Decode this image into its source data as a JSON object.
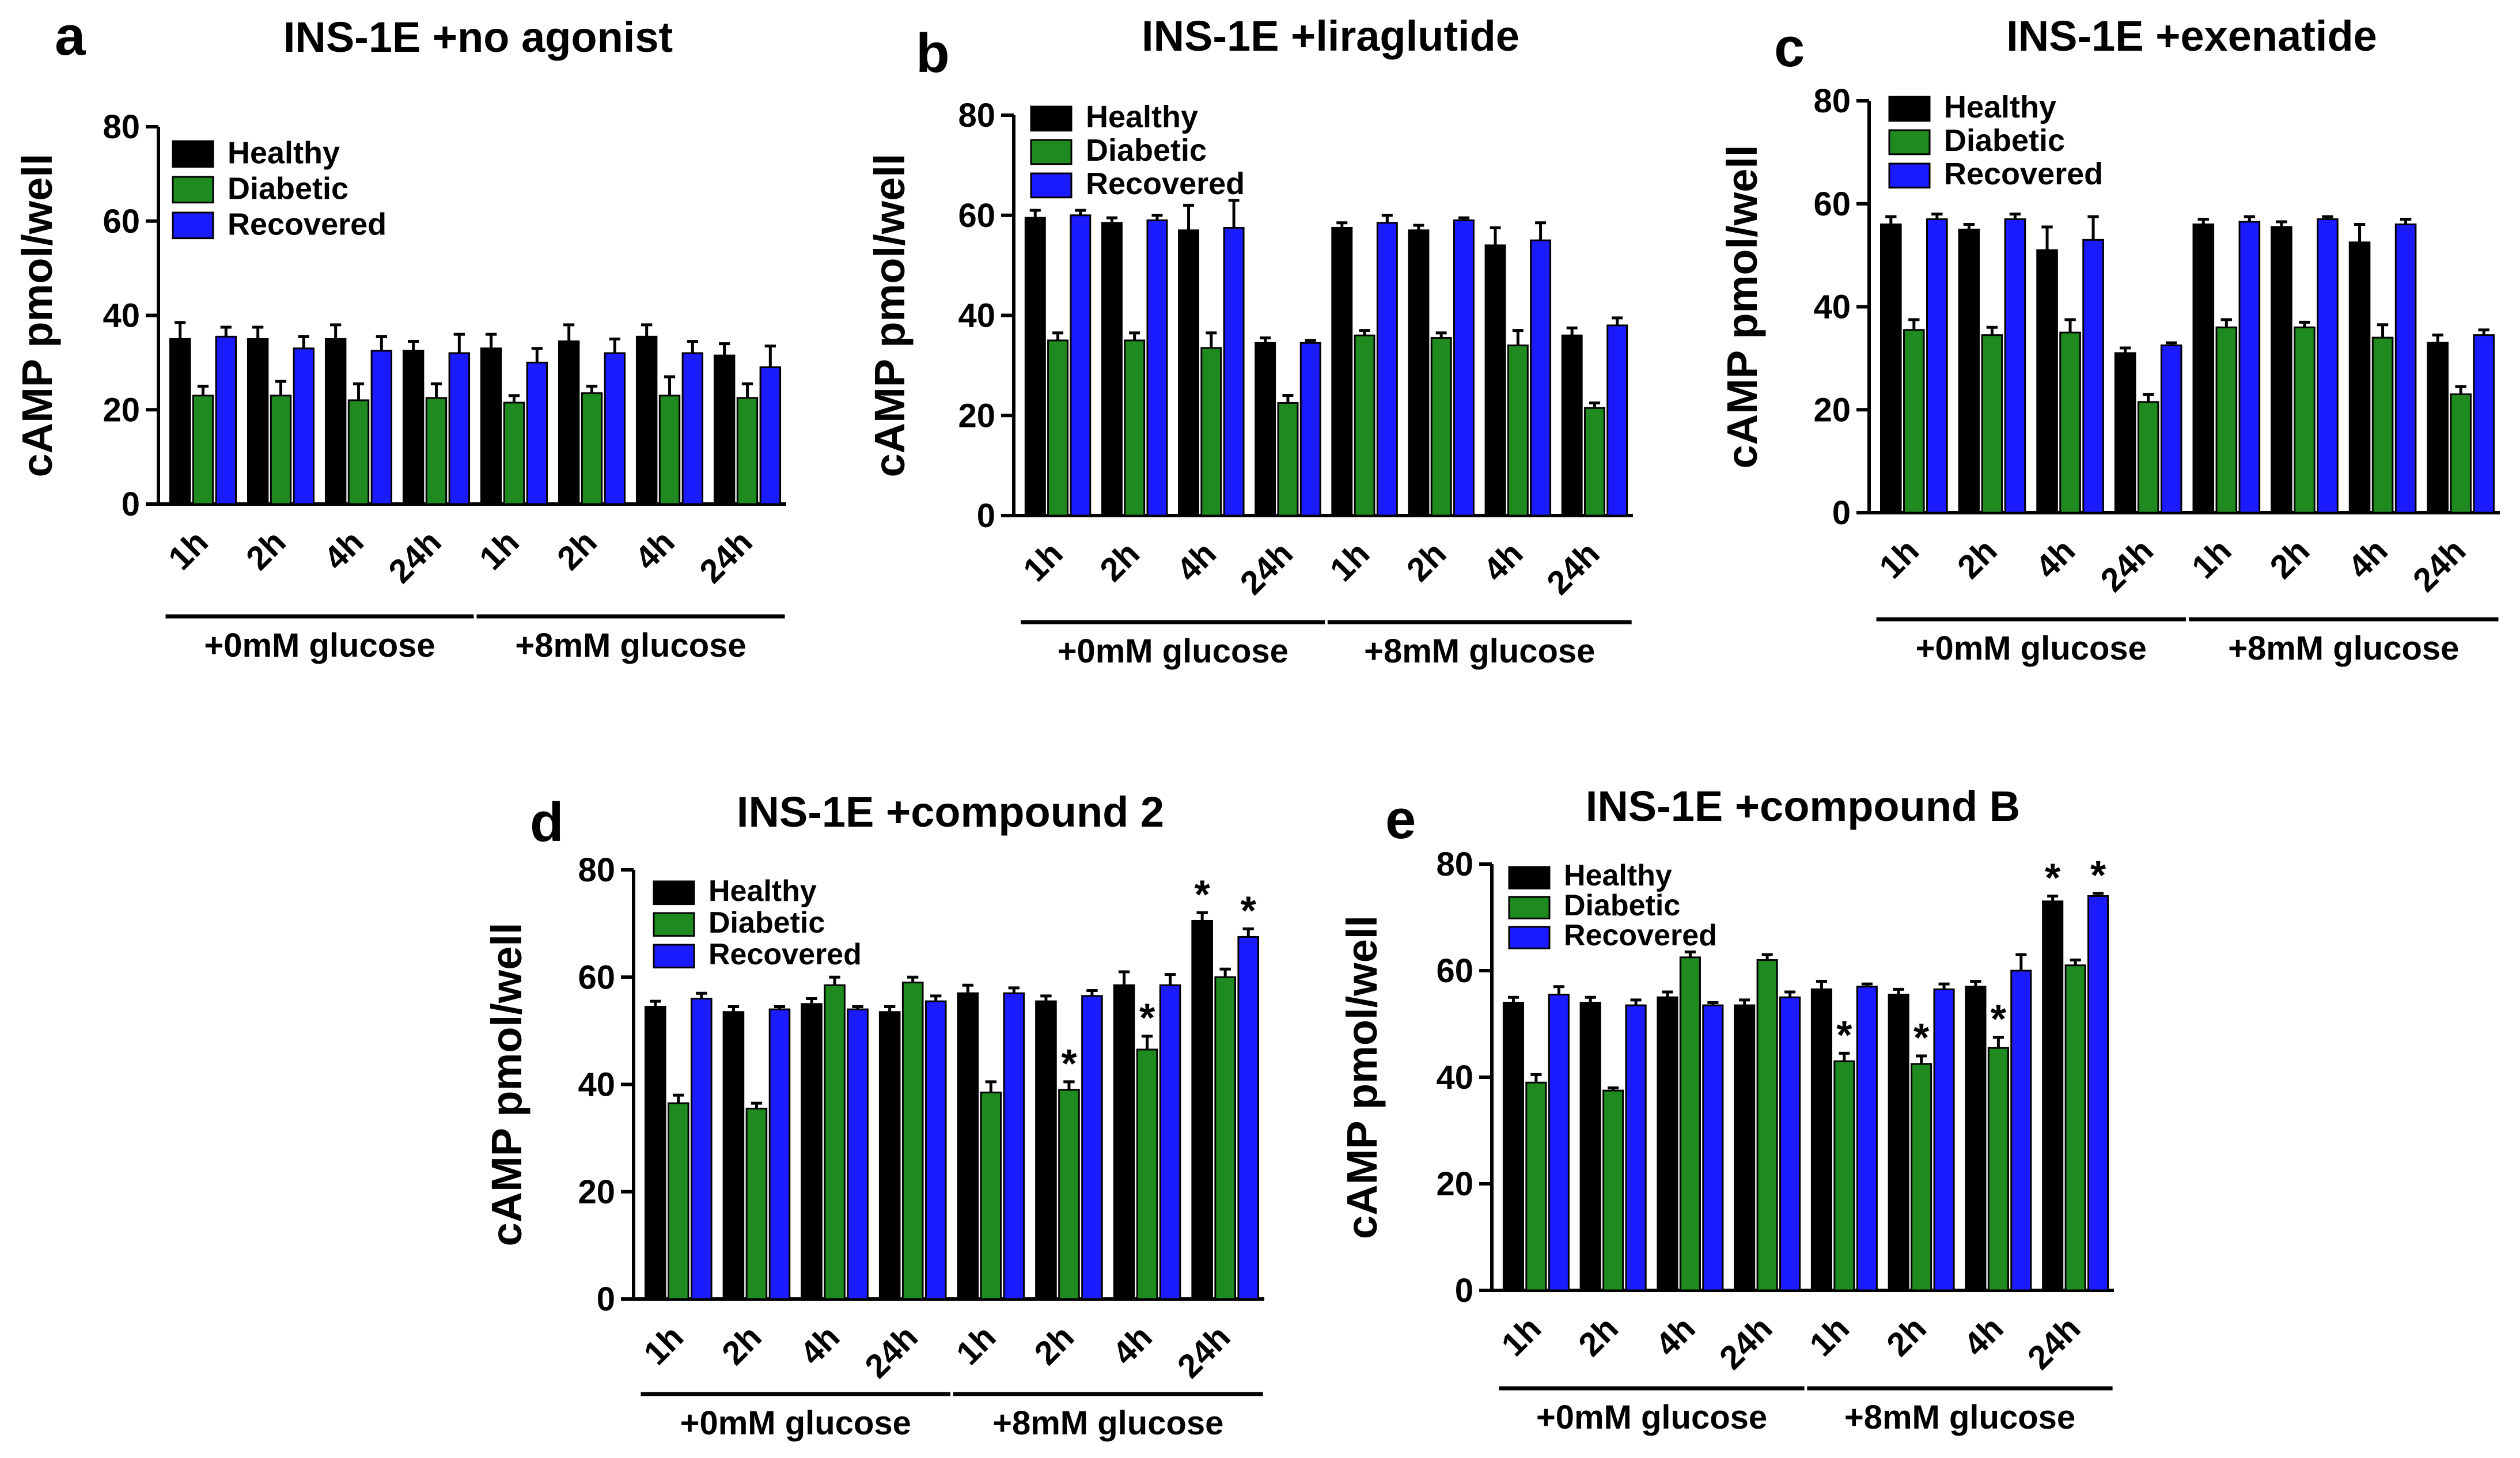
{
  "colors": {
    "healthy": "#000000",
    "diabetic": "#1f8a1f",
    "recovered": "#1b1bff",
    "axis": "#000000",
    "text": "#000000"
  },
  "shared": {
    "ylabel": "cAMP pmol/well",
    "series_names": [
      "Healthy",
      "Diabetic",
      "Recovered"
    ],
    "categories": [
      "1h",
      "2h",
      "4h",
      "24h",
      "1h",
      "2h",
      "4h",
      "24h"
    ],
    "groups": [
      "+0mM glucose",
      "+8mM glucose"
    ],
    "yticks": [
      "0",
      "20",
      "40",
      "60",
      "80"
    ]
  },
  "chart_data": [
    {
      "type": "bar",
      "panel": "a",
      "title": "INS-1E +no agonist",
      "ylabel": "cAMP pmol/well",
      "ylim": [
        0,
        80
      ],
      "categories": [
        "1h",
        "2h",
        "4h",
        "24h",
        "1h",
        "2h",
        "4h",
        "24h"
      ],
      "groups": [
        "+0mM glucose",
        "+8mM glucose"
      ],
      "series": [
        {
          "name": "Healthy",
          "values": [
            35,
            35,
            35,
            32.5,
            33,
            34.5,
            35.5,
            31.5
          ],
          "errors": [
            3.5,
            2.5,
            3,
            2,
            3,
            3.5,
            2.5,
            2.5
          ]
        },
        {
          "name": "Diabetic",
          "values": [
            23,
            23,
            22,
            22.5,
            21.5,
            23.5,
            23,
            22.5
          ],
          "errors": [
            2,
            3,
            3.5,
            3,
            1.5,
            1.5,
            4,
            3
          ]
        },
        {
          "name": "Recovered",
          "values": [
            35.5,
            33,
            32.5,
            32,
            30,
            32,
            32,
            29
          ],
          "errors": [
            2,
            2.5,
            3,
            4,
            3,
            3,
            2.5,
            4.5
          ]
        }
      ],
      "significance": []
    },
    {
      "type": "bar",
      "panel": "b",
      "title": "INS-1E +liraglutide",
      "ylabel": "cAMP pmol/well",
      "ylim": [
        0,
        80
      ],
      "categories": [
        "1h",
        "2h",
        "4h",
        "24h",
        "1h",
        "2h",
        "4h",
        "24h"
      ],
      "groups": [
        "+0mM glucose",
        "+8mM glucose"
      ],
      "series": [
        {
          "name": "Healthy",
          "values": [
            59.5,
            58.5,
            57,
            34.5,
            57.5,
            57,
            54,
            36
          ],
          "errors": [
            1.5,
            1,
            5,
            1,
            1,
            1,
            3.5,
            1.5
          ]
        },
        {
          "name": "Diabetic",
          "values": [
            35,
            35,
            33.5,
            22.5,
            36,
            35.5,
            34,
            21.5
          ],
          "errors": [
            1.5,
            1.5,
            3,
            1.5,
            1,
            1,
            3,
            1
          ]
        },
        {
          "name": "Recovered",
          "values": [
            60,
            59,
            57.5,
            34.5,
            58.5,
            59,
            55,
            38
          ],
          "errors": [
            1,
            1,
            5.5,
            0.5,
            1.5,
            0.5,
            3.5,
            1.5
          ]
        }
      ],
      "significance": []
    },
    {
      "type": "bar",
      "panel": "c",
      "title": "INS-1E +exenatide",
      "ylabel": "cAMP pmol/well",
      "ylim": [
        0,
        80
      ],
      "categories": [
        "1h",
        "2h",
        "4h",
        "24h",
        "1h",
        "2h",
        "4h",
        "24h"
      ],
      "groups": [
        "+0mM glucose",
        "+8mM glucose"
      ],
      "series": [
        {
          "name": "Healthy",
          "values": [
            56,
            55,
            51,
            31,
            56,
            55.5,
            52.5,
            33
          ],
          "errors": [
            1.5,
            1,
            4.5,
            1,
            1,
            1,
            3.5,
            1.5
          ]
        },
        {
          "name": "Diabetic",
          "values": [
            35.5,
            34.5,
            35,
            21.5,
            36,
            36,
            34,
            23
          ],
          "errors": [
            2,
            1.5,
            2.5,
            1.5,
            1.5,
            1,
            2.5,
            1.5
          ]
        },
        {
          "name": "Recovered",
          "values": [
            57,
            57,
            53,
            32.5,
            56.5,
            57,
            56,
            34.5
          ],
          "errors": [
            1,
            1,
            4.5,
            0.5,
            1,
            0.5,
            1,
            1
          ]
        }
      ],
      "significance": []
    },
    {
      "type": "bar",
      "panel": "d",
      "title": "INS-1E +compound 2",
      "ylabel": "cAMP pmol/well",
      "ylim": [
        0,
        80
      ],
      "categories": [
        "1h",
        "2h",
        "4h",
        "24h",
        "1h",
        "2h",
        "4h",
        "24h"
      ],
      "groups": [
        "+0mM glucose",
        "+8mM glucose"
      ],
      "series": [
        {
          "name": "Healthy",
          "values": [
            54.5,
            53.5,
            55,
            53.5,
            57,
            55.5,
            58.5,
            70.5
          ],
          "errors": [
            1,
            1,
            1,
            1,
            1.5,
            1,
            2.5,
            1.5
          ]
        },
        {
          "name": "Diabetic",
          "values": [
            36.5,
            35.5,
            58.5,
            59,
            38.5,
            39,
            46.5,
            60
          ],
          "errors": [
            1.5,
            1,
            1.5,
            1,
            2,
            1.5,
            2.5,
            1.5
          ]
        },
        {
          "name": "Recovered",
          "values": [
            56,
            54,
            54,
            55.5,
            57,
            56.5,
            58.5,
            67.5
          ],
          "errors": [
            1,
            0.5,
            0.5,
            1,
            1,
            1,
            2,
            1.5
          ]
        }
      ],
      "significance": [
        {
          "series": 1,
          "index": 5,
          "label": "*"
        },
        {
          "series": 1,
          "index": 6,
          "label": "*"
        },
        {
          "series": 0,
          "index": 7,
          "label": "*"
        },
        {
          "series": 2,
          "index": 7,
          "label": "*"
        }
      ]
    },
    {
      "type": "bar",
      "panel": "e",
      "title": "INS-1E +compound B",
      "ylabel": "cAMP pmol/well",
      "ylim": [
        0,
        80
      ],
      "categories": [
        "1h",
        "2h",
        "4h",
        "24h",
        "1h",
        "2h",
        "4h",
        "24h"
      ],
      "groups": [
        "+0mM glucose",
        "+8mM glucose"
      ],
      "series": [
        {
          "name": "Healthy",
          "values": [
            54,
            54,
            55,
            53.5,
            56.5,
            55.5,
            57,
            73
          ],
          "errors": [
            1,
            1,
            1,
            1,
            1.5,
            1,
            1,
            1
          ]
        },
        {
          "name": "Diabetic",
          "values": [
            39,
            37.5,
            62.5,
            62,
            43,
            42.5,
            45.5,
            61
          ],
          "errors": [
            1.5,
            0.5,
            1,
            1,
            1.5,
            1.5,
            2,
            1
          ]
        },
        {
          "name": "Recovered",
          "values": [
            55.5,
            53.5,
            53.5,
            55,
            57,
            56.5,
            60,
            74
          ],
          "errors": [
            1.5,
            1,
            0.5,
            1,
            0.5,
            1,
            3,
            0.5
          ]
        }
      ],
      "significance": [
        {
          "series": 1,
          "index": 4,
          "label": "*"
        },
        {
          "series": 1,
          "index": 5,
          "label": "*"
        },
        {
          "series": 1,
          "index": 6,
          "label": "*"
        },
        {
          "series": 0,
          "index": 7,
          "label": "*"
        },
        {
          "series": 2,
          "index": 7,
          "label": "*"
        }
      ]
    }
  ]
}
